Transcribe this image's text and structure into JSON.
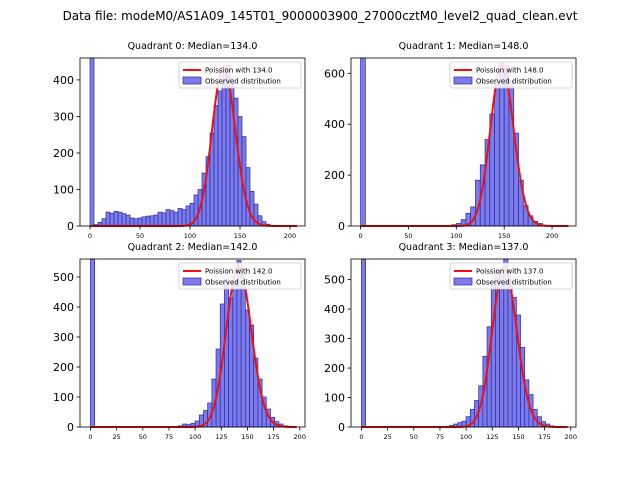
{
  "suptitle": "Data file: modeM0/AS1A09_145T01_9000003900_27000cztM0_level2_quad_clean.evt",
  "colors": {
    "bar_fill": "#7b7bea",
    "bar_edge": "#2a2aa8",
    "poisson": "#ee1111"
  },
  "chart_data": [
    {
      "type": "bar",
      "title": "Quadrant 0: Median=134.0",
      "xlabel": "",
      "ylabel": "",
      "xlim": [
        -10,
        215
      ],
      "ylim": [
        0,
        460
      ],
      "xticks": [
        0,
        50,
        100,
        150,
        200
      ],
      "yticks": [
        0,
        100,
        200,
        300,
        400
      ],
      "legend": {
        "position": "top-right",
        "entries": [
          "Poission with 134.0",
          "Observed distribution"
        ]
      },
      "poisson_mean": 134.0,
      "poisson_peak": 435,
      "bin_width": 4,
      "bins": [
        [
          0,
          460
        ],
        [
          4,
          4
        ],
        [
          8,
          10
        ],
        [
          12,
          20
        ],
        [
          16,
          38
        ],
        [
          20,
          35
        ],
        [
          24,
          40
        ],
        [
          28,
          38
        ],
        [
          32,
          34
        ],
        [
          36,
          30
        ],
        [
          40,
          22
        ],
        [
          44,
          20
        ],
        [
          48,
          22
        ],
        [
          52,
          25
        ],
        [
          56,
          27
        ],
        [
          60,
          28
        ],
        [
          64,
          30
        ],
        [
          68,
          38
        ],
        [
          72,
          36
        ],
        [
          76,
          45
        ],
        [
          80,
          42
        ],
        [
          84,
          38
        ],
        [
          88,
          48
        ],
        [
          92,
          45
        ],
        [
          96,
          55
        ],
        [
          100,
          62
        ],
        [
          104,
          85
        ],
        [
          108,
          100
        ],
        [
          112,
          145
        ],
        [
          116,
          190
        ],
        [
          120,
          255
        ],
        [
          124,
          330
        ],
        [
          128,
          370
        ],
        [
          132,
          420
        ],
        [
          136,
          440
        ],
        [
          140,
          405
        ],
        [
          144,
          350
        ],
        [
          148,
          300
        ],
        [
          152,
          245
        ],
        [
          156,
          160
        ],
        [
          160,
          95
        ],
        [
          164,
          60
        ],
        [
          168,
          28
        ],
        [
          172,
          12
        ],
        [
          176,
          5
        ],
        [
          180,
          2
        ],
        [
          184,
          1
        ]
      ]
    },
    {
      "type": "bar",
      "title": "Quadrant 1: Median=148.0",
      "xlabel": "",
      "ylabel": "",
      "xlim": [
        -10,
        225
      ],
      "ylim": [
        0,
        660
      ],
      "xticks": [
        0,
        50,
        100,
        150,
        200
      ],
      "yticks": [
        0,
        200,
        400,
        600
      ],
      "legend": {
        "position": "top-right",
        "entries": [
          "Poission with 148.0",
          "Observed distribution"
        ]
      },
      "poisson_mean": 148.0,
      "poisson_peak": 630,
      "bin_width": 5,
      "bins": [
        [
          0,
          660
        ],
        [
          95,
          5
        ],
        [
          100,
          10
        ],
        [
          105,
          25
        ],
        [
          110,
          50
        ],
        [
          115,
          75
        ],
        [
          120,
          180
        ],
        [
          125,
          240
        ],
        [
          130,
          340
        ],
        [
          135,
          440
        ],
        [
          140,
          560
        ],
        [
          145,
          640
        ],
        [
          150,
          630
        ],
        [
          155,
          570
        ],
        [
          160,
          365
        ],
        [
          165,
          180
        ],
        [
          170,
          80
        ],
        [
          175,
          40
        ],
        [
          180,
          18
        ],
        [
          185,
          10
        ],
        [
          190,
          3
        ]
      ]
    },
    {
      "type": "bar",
      "title": "Quadrant 2: Median=142.0",
      "xlabel": "",
      "ylabel": "",
      "xlim": [
        -10,
        205
      ],
      "ylim": [
        0,
        560
      ],
      "xticks": [
        0,
        25,
        50,
        75,
        100,
        125,
        150,
        175,
        200
      ],
      "yticks": [
        0,
        100,
        200,
        300,
        400,
        500
      ],
      "legend": {
        "position": "top-right",
        "entries": [
          "Poission with 142.0",
          "Observed distribution"
        ]
      },
      "poisson_mean": 142.0,
      "poisson_peak": 535,
      "bin_width": 4,
      "bins": [
        [
          0,
          560
        ],
        [
          84,
          4
        ],
        [
          88,
          10
        ],
        [
          92,
          8
        ],
        [
          96,
          12
        ],
        [
          100,
          20
        ],
        [
          104,
          40
        ],
        [
          108,
          55
        ],
        [
          112,
          80
        ],
        [
          116,
          160
        ],
        [
          120,
          260
        ],
        [
          124,
          410
        ],
        [
          128,
          495
        ],
        [
          132,
          430
        ],
        [
          136,
          480
        ],
        [
          140,
          555
        ],
        [
          144,
          470
        ],
        [
          148,
          390
        ],
        [
          152,
          340
        ],
        [
          156,
          230
        ],
        [
          160,
          160
        ],
        [
          164,
          100
        ],
        [
          168,
          60
        ],
        [
          172,
          32
        ],
        [
          176,
          18
        ],
        [
          180,
          10
        ],
        [
          184,
          4
        ],
        [
          188,
          2
        ]
      ]
    },
    {
      "type": "bar",
      "title": "Quadrant 3: Median=137.0",
      "xlabel": "",
      "ylabel": "",
      "xlim": [
        -10,
        205
      ],
      "ylim": [
        0,
        570
      ],
      "xticks": [
        0,
        25,
        50,
        75,
        100,
        125,
        150,
        175,
        200
      ],
      "yticks": [
        0,
        100,
        200,
        300,
        400,
        500
      ],
      "legend": {
        "position": "top-right",
        "entries": [
          "Poission with 137.0",
          "Observed distribution"
        ]
      },
      "poisson_mean": 137.0,
      "poisson_peak": 540,
      "bin_width": 4,
      "bins": [
        [
          0,
          570
        ],
        [
          84,
          5
        ],
        [
          88,
          10
        ],
        [
          92,
          15
        ],
        [
          96,
          20
        ],
        [
          100,
          35
        ],
        [
          104,
          60
        ],
        [
          108,
          90
        ],
        [
          112,
          140
        ],
        [
          116,
          240
        ],
        [
          120,
          340
        ],
        [
          124,
          480
        ],
        [
          128,
          530
        ],
        [
          132,
          510
        ],
        [
          136,
          570
        ],
        [
          140,
          500
        ],
        [
          144,
          440
        ],
        [
          148,
          380
        ],
        [
          152,
          270
        ],
        [
          156,
          160
        ],
        [
          160,
          110
        ],
        [
          164,
          60
        ],
        [
          168,
          35
        ],
        [
          172,
          18
        ],
        [
          176,
          10
        ],
        [
          180,
          4
        ]
      ]
    }
  ]
}
